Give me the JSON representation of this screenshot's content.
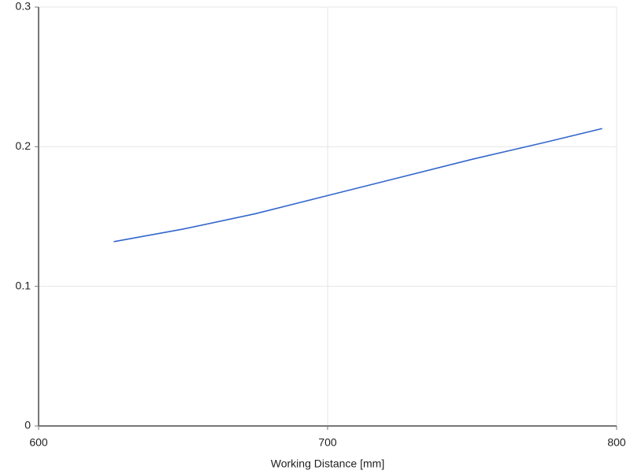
{
  "chart_data": {
    "type": "line",
    "x_label": "Working Distance [mm]",
    "x": [
      626,
      650,
      675,
      700,
      725,
      750,
      775,
      795
    ],
    "series": [
      {
        "color": "#3366cc",
        "values": [
          0.132,
          0.141,
          0.152,
          0.165,
          0.178,
          0.191,
          0.203,
          0.213
        ]
      }
    ],
    "xlim": [
      600,
      800
    ],
    "xticks": [
      600,
      700,
      800
    ],
    "ylim": [
      0,
      0.3
    ],
    "yticks": [
      0,
      0.1,
      0.2,
      0.3
    ],
    "grid": true
  }
}
